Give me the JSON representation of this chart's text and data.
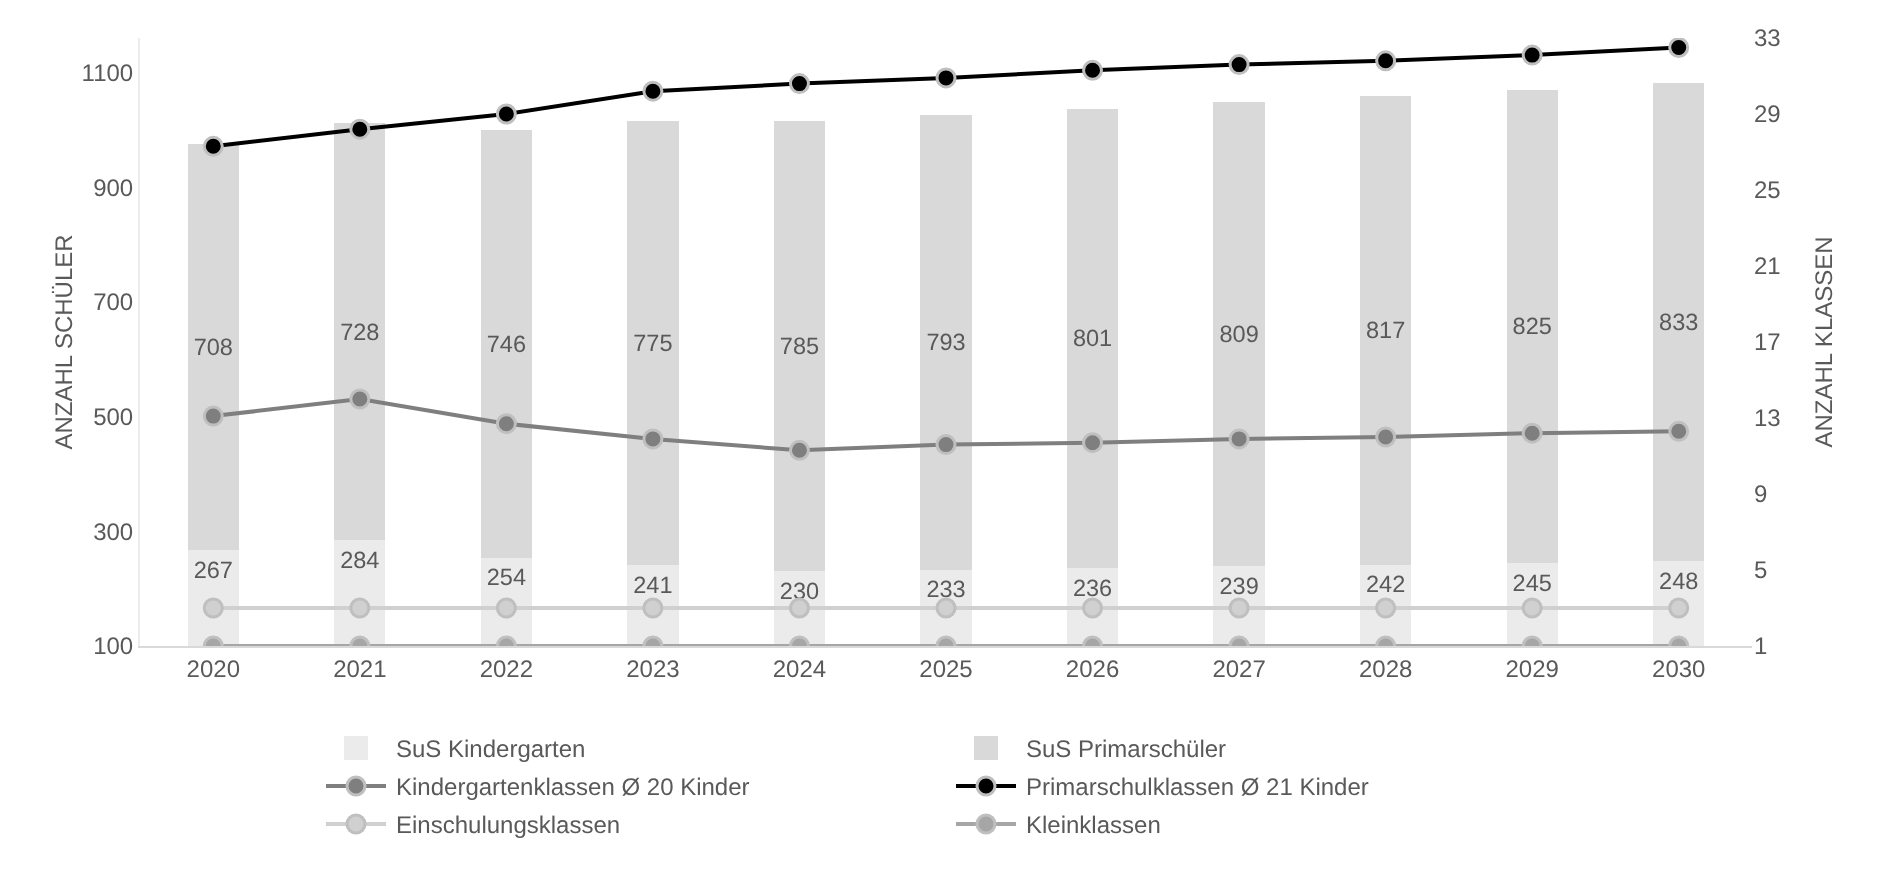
{
  "chart_data": {
    "type": "bar",
    "stacked": true,
    "categories": [
      "2020",
      "2021",
      "2022",
      "2023",
      "2024",
      "2025",
      "2026",
      "2027",
      "2028",
      "2029",
      "2030"
    ],
    "series": [
      {
        "name": "SuS Kindergarten",
        "color": "#ebebeb",
        "values": [
          267,
          284,
          254,
          241,
          230,
          233,
          236,
          239,
          242,
          245,
          248
        ],
        "value_labels": [
          "267",
          "284",
          "254",
          "241",
          "230",
          "233",
          "236",
          "239",
          "242",
          "245",
          "248"
        ]
      },
      {
        "name": "SuS Primarschüler",
        "color": "#d9d9d9",
        "values": [
          708,
          728,
          746,
          775,
          785,
          793,
          801,
          809,
          817,
          825,
          833
        ],
        "value_labels": [
          "708",
          "728",
          "746",
          "775",
          "785",
          "793",
          "801",
          "809",
          "817",
          "825",
          "833"
        ]
      },
      {
        "name": "Kindergartenklassen Ø 20 Kinder",
        "type": "line",
        "axis": "y2",
        "color": "#7f7f7f",
        "values": [
          13.1,
          14.0,
          12.7,
          11.9,
          11.3,
          11.6,
          11.7,
          11.9,
          12.0,
          12.2,
          12.3
        ]
      },
      {
        "name": "Primarschulklassen Ø 21 Kinder",
        "type": "line",
        "axis": "y2",
        "color": "#000000",
        "values": [
          27.3,
          28.2,
          29.0,
          30.2,
          30.6,
          30.9,
          31.3,
          31.6,
          31.8,
          32.1,
          32.5
        ]
      },
      {
        "name": "Einschulungsklassen",
        "type": "line",
        "axis": "y2",
        "color": "#d0d0d0",
        "values": [
          3,
          3,
          3,
          3,
          3,
          3,
          3,
          3,
          3,
          3,
          3
        ]
      },
      {
        "name": "Kleinklassen",
        "type": "line",
        "axis": "y2",
        "color": "#a6a6a6",
        "values": [
          1,
          1,
          1,
          1,
          1,
          1,
          1,
          1,
          1,
          1,
          1
        ]
      }
    ],
    "ylabel": "ANZAHL SCHÜLER",
    "y2label": "ANZAHL KLASSEN",
    "ylim": [
      100,
      1160
    ],
    "yticks": [
      100,
      300,
      500,
      700,
      900,
      1100
    ],
    "y2lim": [
      1,
      33
    ],
    "y2ticks": [
      1,
      5,
      9,
      13,
      17,
      21,
      25,
      29,
      33
    ],
    "marker": "circle",
    "grid": false,
    "legend": "bottom"
  }
}
